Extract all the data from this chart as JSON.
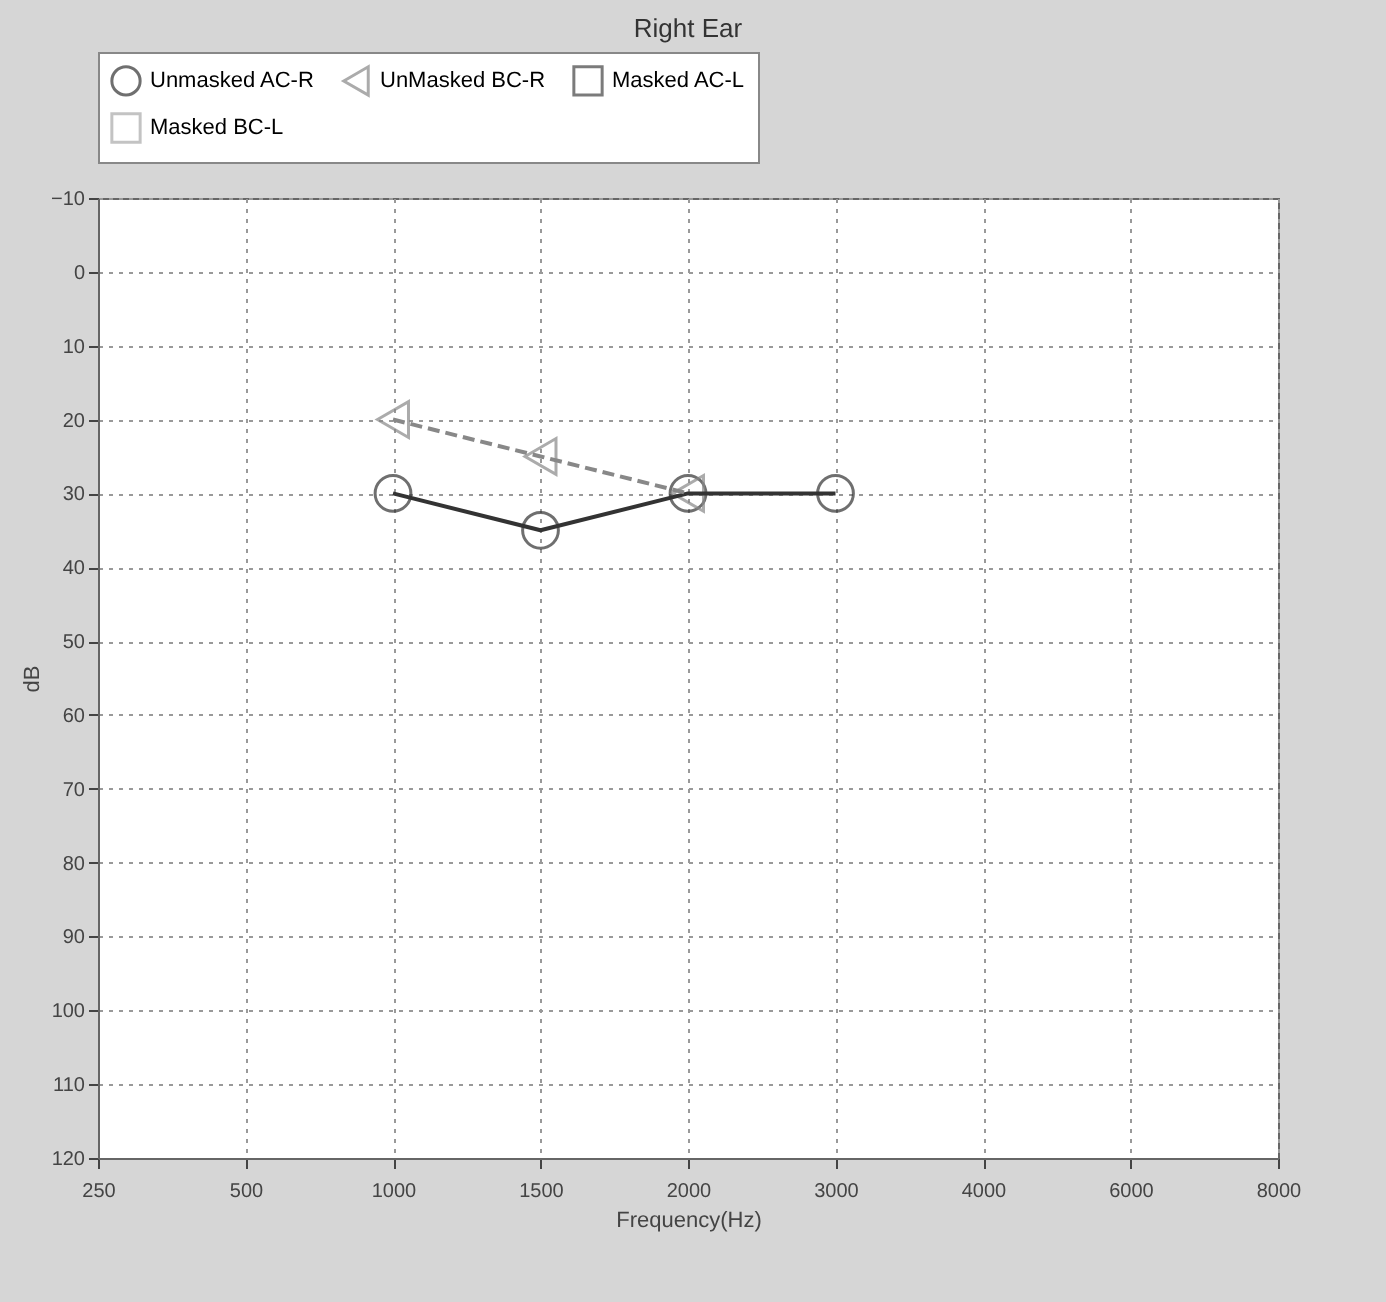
{
  "chart_data": {
    "type": "line",
    "title": "Right Ear",
    "xlabel": "Frequency(Hz)",
    "ylabel": "dB",
    "categories": [
      "250",
      "500",
      "1000",
      "1500",
      "2000",
      "3000",
      "4000",
      "6000",
      "8000"
    ],
    "ylim": [
      120,
      -10
    ],
    "yticks": [
      -10,
      0,
      10,
      20,
      30,
      40,
      50,
      60,
      70,
      80,
      90,
      100,
      110,
      120
    ],
    "grid": true,
    "legend": "top",
    "series": [
      {
        "name": "Unmasked AC-R",
        "color": "#333333",
        "marker": "circle",
        "line_style": "solid",
        "values": [
          null,
          null,
          30,
          35,
          30,
          30,
          null,
          null,
          null
        ]
      },
      {
        "name": "UnMasked BC-R",
        "color": "#888888",
        "marker": "triangle",
        "line_style": "dashed",
        "values": [
          null,
          null,
          20,
          25,
          30,
          null,
          null,
          null,
          null
        ]
      },
      {
        "name": "Masked AC-L",
        "color": "#444444",
        "marker": "square",
        "line_style": "solid",
        "values": [
          null,
          null,
          null,
          null,
          null,
          null,
          null,
          null,
          null
        ]
      },
      {
        "name": "Masked BC-L",
        "color": "#aaaaaa",
        "marker": "square",
        "line_style": "dashed",
        "values": [
          null,
          null,
          null,
          null,
          null,
          null,
          null,
          null,
          null
        ]
      }
    ]
  }
}
